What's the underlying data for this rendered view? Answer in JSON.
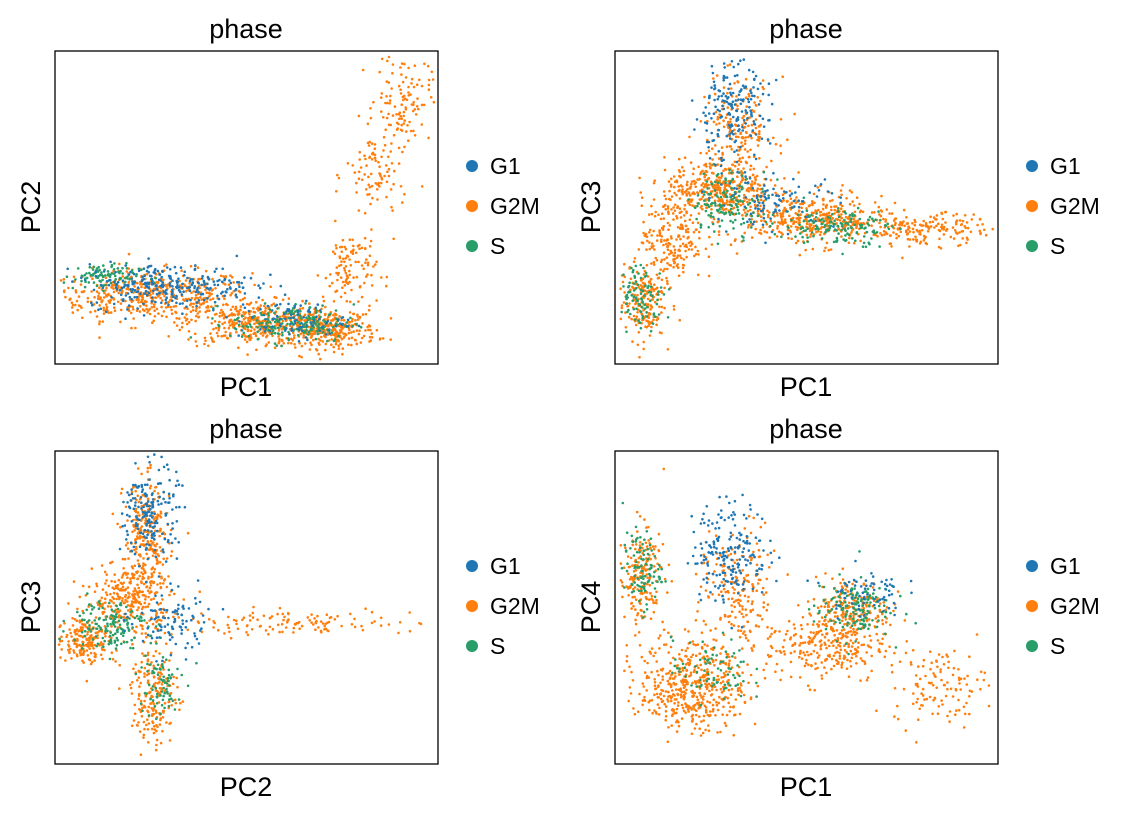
{
  "colors": {
    "G1": "#1f77b4",
    "G2M": "#ff7f0e",
    "S": "#279e68"
  },
  "legend": [
    "G1",
    "G2M",
    "S"
  ],
  "chart_data": [
    {
      "type": "scatter",
      "title": "phase",
      "xlabel": "PC1",
      "ylabel": "PC2",
      "grid": false,
      "ticks": false,
      "legend_position": "right",
      "series": [
        {
          "name": "G1",
          "shape": "low band (upper edge)",
          "clusters": [
            {
              "x": 0.3,
              "y": 0.25,
              "sx": 0.11,
              "sy": 0.035,
              "w": 3
            },
            {
              "x": 0.62,
              "y": 0.14,
              "sx": 0.07,
              "sy": 0.03,
              "w": 1
            }
          ]
        },
        {
          "name": "G2M",
          "shape": "V / hockey-stick",
          "clusters": [
            {
              "x": 0.25,
              "y": 0.22,
              "sx": 0.13,
              "sy": 0.04,
              "w": 5
            },
            {
              "x": 0.52,
              "y": 0.13,
              "sx": 0.09,
              "sy": 0.035,
              "w": 4
            },
            {
              "x": 0.72,
              "y": 0.11,
              "sx": 0.06,
              "sy": 0.03,
              "w": 3
            },
            {
              "x": 0.77,
              "y": 0.3,
              "sx": 0.035,
              "sy": 0.07,
              "w": 1.2
            },
            {
              "x": 0.84,
              "y": 0.6,
              "sx": 0.04,
              "sy": 0.08,
              "w": 1.0
            },
            {
              "x": 0.91,
              "y": 0.85,
              "sx": 0.035,
              "sy": 0.07,
              "w": 1.1
            }
          ]
        },
        {
          "name": "S",
          "shape": "low band",
          "clusters": [
            {
              "x": 0.12,
              "y": 0.28,
              "sx": 0.05,
              "sy": 0.02,
              "w": 1
            },
            {
              "x": 0.62,
              "y": 0.13,
              "sx": 0.08,
              "sy": 0.03,
              "w": 2
            }
          ]
        }
      ]
    },
    {
      "type": "scatter",
      "title": "phase",
      "xlabel": "PC1",
      "ylabel": "PC3",
      "grid": false,
      "ticks": false,
      "legend_position": "right",
      "series": [
        {
          "name": "G1",
          "shape": "peak top",
          "clusters": [
            {
              "x": 0.3,
              "y": 0.8,
              "sx": 0.05,
              "sy": 0.08,
              "w": 2
            },
            {
              "x": 0.42,
              "y": 0.52,
              "sx": 0.08,
              "sy": 0.04,
              "w": 1
            }
          ]
        },
        {
          "name": "G2M",
          "shape": "arch",
          "clusters": [
            {
              "x": 0.07,
              "y": 0.2,
              "sx": 0.03,
              "sy": 0.06,
              "w": 2
            },
            {
              "x": 0.15,
              "y": 0.4,
              "sx": 0.04,
              "sy": 0.07,
              "w": 2
            },
            {
              "x": 0.27,
              "y": 0.55,
              "sx": 0.07,
              "sy": 0.05,
              "w": 4
            },
            {
              "x": 0.32,
              "y": 0.75,
              "sx": 0.05,
              "sy": 0.08,
              "w": 2
            },
            {
              "x": 0.52,
              "y": 0.46,
              "sx": 0.09,
              "sy": 0.04,
              "w": 4
            },
            {
              "x": 0.8,
              "y": 0.43,
              "sx": 0.09,
              "sy": 0.025,
              "w": 2
            }
          ]
        },
        {
          "name": "S",
          "shape": "arch",
          "clusters": [
            {
              "x": 0.07,
              "y": 0.22,
              "sx": 0.03,
              "sy": 0.05,
              "w": 1
            },
            {
              "x": 0.3,
              "y": 0.52,
              "sx": 0.05,
              "sy": 0.05,
              "w": 1.5
            },
            {
              "x": 0.58,
              "y": 0.44,
              "sx": 0.07,
              "sy": 0.03,
              "w": 1.5
            }
          ]
        }
      ]
    },
    {
      "type": "scatter",
      "title": "phase",
      "xlabel": "PC2",
      "ylabel": "PC3",
      "grid": false,
      "ticks": false,
      "legend_position": "right",
      "series": [
        {
          "name": "G1",
          "shape": "vertical arm top",
          "clusters": [
            {
              "x": 0.25,
              "y": 0.8,
              "sx": 0.035,
              "sy": 0.08,
              "w": 2
            },
            {
              "x": 0.3,
              "y": 0.45,
              "sx": 0.05,
              "sy": 0.05,
              "w": 1
            }
          ]
        },
        {
          "name": "G2M",
          "shape": "cross",
          "clusters": [
            {
              "x": 0.08,
              "y": 0.4,
              "sx": 0.04,
              "sy": 0.04,
              "w": 2
            },
            {
              "x": 0.2,
              "y": 0.53,
              "sx": 0.05,
              "sy": 0.06,
              "w": 3
            },
            {
              "x": 0.24,
              "y": 0.73,
              "sx": 0.03,
              "sy": 0.09,
              "w": 2.5
            },
            {
              "x": 0.26,
              "y": 0.22,
              "sx": 0.03,
              "sy": 0.08,
              "w": 2
            },
            {
              "x": 0.6,
              "y": 0.45,
              "sx": 0.17,
              "sy": 0.02,
              "w": 1.3
            }
          ]
        },
        {
          "name": "S",
          "shape": "center",
          "clusters": [
            {
              "x": 0.14,
              "y": 0.45,
              "sx": 0.05,
              "sy": 0.04,
              "w": 1.5
            },
            {
              "x": 0.27,
              "y": 0.25,
              "sx": 0.03,
              "sy": 0.06,
              "w": 0.8
            }
          ]
        }
      ]
    },
    {
      "type": "scatter",
      "title": "phase",
      "xlabel": "PC1",
      "ylabel": "PC4",
      "grid": false,
      "ticks": false,
      "legend_position": "right",
      "series": [
        {
          "name": "G1",
          "shape": "upper middle",
          "clusters": [
            {
              "x": 0.3,
              "y": 0.68,
              "sx": 0.05,
              "sy": 0.08,
              "w": 2
            },
            {
              "x": 0.65,
              "y": 0.55,
              "sx": 0.05,
              "sy": 0.04,
              "w": 0.7
            }
          ]
        },
        {
          "name": "G2M",
          "shape": "wave",
          "clusters": [
            {
              "x": 0.07,
              "y": 0.6,
              "sx": 0.03,
              "sy": 0.08,
              "w": 2
            },
            {
              "x": 0.2,
              "y": 0.25,
              "sx": 0.07,
              "sy": 0.07,
              "w": 5
            },
            {
              "x": 0.32,
              "y": 0.55,
              "sx": 0.05,
              "sy": 0.1,
              "w": 2
            },
            {
              "x": 0.55,
              "y": 0.38,
              "sx": 0.08,
              "sy": 0.06,
              "w": 3
            },
            {
              "x": 0.62,
              "y": 0.5,
              "sx": 0.05,
              "sy": 0.05,
              "w": 2
            },
            {
              "x": 0.85,
              "y": 0.25,
              "sx": 0.06,
              "sy": 0.06,
              "w": 1.2
            }
          ]
        },
        {
          "name": "S",
          "shape": "scattered",
          "clusters": [
            {
              "x": 0.07,
              "y": 0.62,
              "sx": 0.025,
              "sy": 0.06,
              "w": 1
            },
            {
              "x": 0.62,
              "y": 0.5,
              "sx": 0.05,
              "sy": 0.05,
              "w": 1.5
            },
            {
              "x": 0.25,
              "y": 0.3,
              "sx": 0.05,
              "sy": 0.05,
              "w": 0.8
            }
          ]
        }
      ]
    }
  ]
}
